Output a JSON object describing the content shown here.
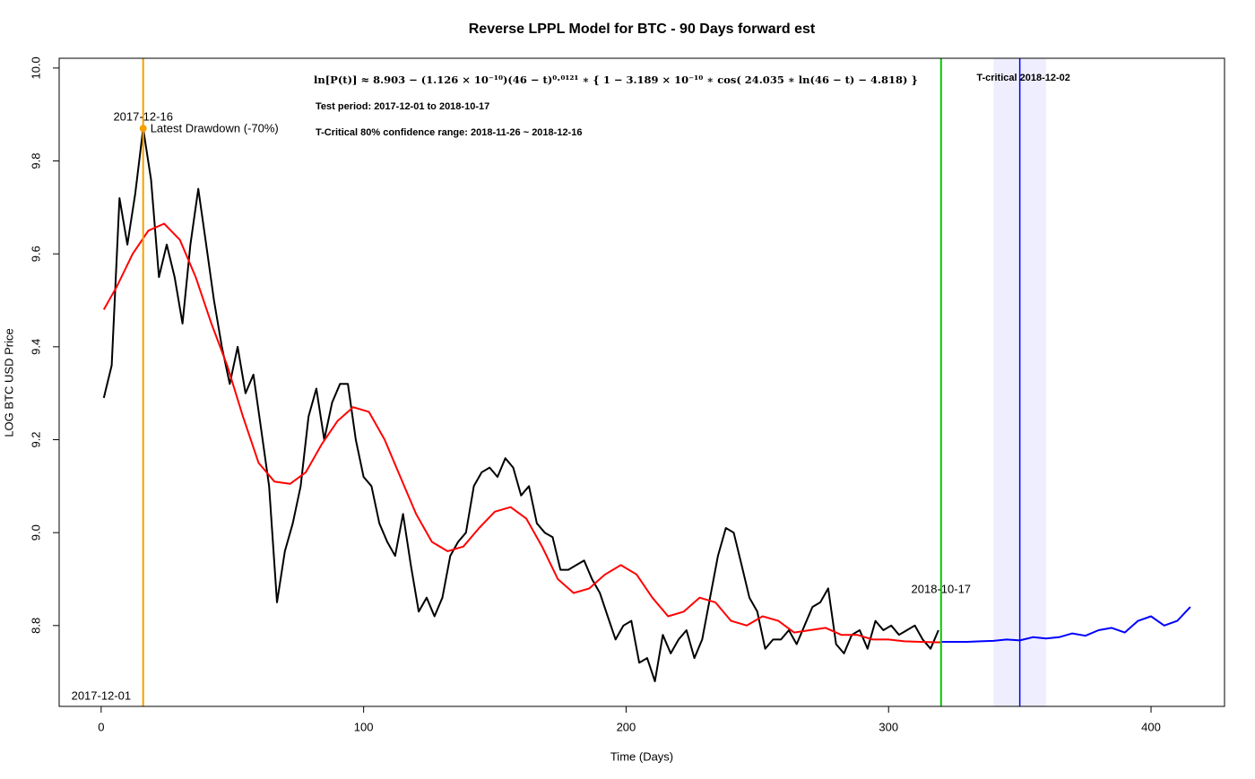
{
  "chart_data": {
    "type": "line",
    "title": "Reverse LPPL Model for BTC - 90 Days forward est",
    "x_label": "Time (Days)",
    "y_label": "LOG BTC USD Price",
    "xlim": [
      -16,
      428
    ],
    "ylim": [
      8.626,
      10.021
    ],
    "xticks": [
      0,
      100,
      200,
      300,
      400
    ],
    "yticks": [
      8.8,
      {
        "value": 9,
        "label": "9.0"
      },
      9.2,
      9.4,
      9.6,
      9.8,
      {
        "value": 10,
        "label": "10.0"
      }
    ],
    "formula": "ln[P(t)] ≈  8.903 − (1.126 × 10⁻¹⁰)(46 − t)⁰·⁰¹²¹ ∗ { 1 − 3.189 × 10⁻¹⁰ ∗ cos( 24.035 ∗ ln(46 − t) − 4.818) }",
    "test_period": "Test period: 2017-12-01 to 2018-10-17",
    "confidence_range": "T-Critical 80% confidence range: 2018-11-26 ~ 2018-12-16",
    "start_label": "2017-12-01",
    "peak": {
      "x": 16,
      "y": 9.87,
      "date_label": "2017-12-16",
      "label": "Latest Drawdown (-70%)",
      "color": "#f5a000"
    },
    "test_end": {
      "x": 320,
      "label": "2018-10-17",
      "color": "#00cc00"
    },
    "t_critical": {
      "x": 350,
      "label": "T-critical  2018-12-02",
      "color": "#0000ff",
      "range": [
        340,
        360
      ],
      "range_color": "#eeeeff"
    },
    "series": [
      {
        "color": "#000000",
        "x": [
          1,
          4,
          7,
          10,
          13,
          16,
          19,
          22,
          25,
          28,
          31,
          34,
          37,
          40,
          43,
          46,
          49,
          52,
          55,
          58,
          61,
          64,
          67,
          70,
          73,
          76,
          79,
          82,
          85,
          88,
          91,
          94,
          97,
          100,
          103,
          106,
          109,
          112,
          115,
          118,
          121,
          124,
          127,
          130,
          133,
          136,
          139,
          142,
          145,
          148,
          151,
          154,
          157,
          160,
          163,
          166,
          169,
          172,
          175,
          178,
          181,
          184,
          187,
          190,
          193,
          196,
          199,
          202,
          205,
          208,
          211,
          214,
          217,
          220,
          223,
          226,
          229,
          232,
          235,
          238,
          241,
          244,
          247,
          250,
          253,
          256,
          259,
          262,
          265,
          268,
          271,
          274,
          277,
          280,
          283,
          286,
          289,
          292,
          295,
          298,
          301,
          304,
          307,
          310,
          313,
          316,
          319
        ],
        "values": [
          9.29,
          9.36,
          9.72,
          9.62,
          9.73,
          9.87,
          9.76,
          9.55,
          9.62,
          9.55,
          9.45,
          9.62,
          9.74,
          9.62,
          9.5,
          9.4,
          9.32,
          9.4,
          9.3,
          9.34,
          9.22,
          9.1,
          8.85,
          8.96,
          9.02,
          9.1,
          9.25,
          9.31,
          9.2,
          9.28,
          9.32,
          9.32,
          9.2,
          9.12,
          9.1,
          9.02,
          8.98,
          8.95,
          9.04,
          8.93,
          8.83,
          8.86,
          8.82,
          8.86,
          8.95,
          8.98,
          9.0,
          9.1,
          9.13,
          9.14,
          9.12,
          9.16,
          9.14,
          9.08,
          9.1,
          9.02,
          9.0,
          8.99,
          8.92,
          8.92,
          8.93,
          8.94,
          8.9,
          8.87,
          8.82,
          8.77,
          8.8,
          8.81,
          8.72,
          8.73,
          8.68,
          8.78,
          8.74,
          8.77,
          8.79,
          8.73,
          8.77,
          8.86,
          8.95,
          9.01,
          9.0,
          8.93,
          8.86,
          8.83,
          8.75,
          8.77,
          8.77,
          8.79,
          8.76,
          8.8,
          8.84,
          8.85,
          8.88,
          8.76,
          8.74,
          8.78,
          8.79,
          8.75,
          8.81,
          8.79,
          8.8,
          8.78,
          8.79,
          8.8,
          8.77,
          8.75,
          8.79
        ]
      },
      {
        "color": "#ff0000",
        "x": [
          1,
          6,
          12,
          18,
          24,
          30,
          36,
          42,
          48,
          54,
          60,
          66,
          72,
          78,
          84,
          90,
          96,
          102,
          108,
          114,
          120,
          126,
          132,
          138,
          144,
          150,
          156,
          162,
          168,
          174,
          180,
          186,
          192,
          198,
          204,
          210,
          216,
          222,
          228,
          234,
          240,
          246,
          252,
          258,
          264,
          270,
          276,
          282,
          288,
          294,
          300,
          306,
          312,
          318,
          320
        ],
        "values": [
          9.48,
          9.53,
          9.6,
          9.65,
          9.665,
          9.63,
          9.55,
          9.45,
          9.36,
          9.25,
          9.15,
          9.11,
          9.105,
          9.13,
          9.19,
          9.24,
          9.27,
          9.26,
          9.2,
          9.12,
          9.04,
          8.98,
          8.96,
          8.97,
          9.01,
          9.045,
          9.055,
          9.03,
          8.97,
          8.9,
          8.87,
          8.88,
          8.91,
          8.93,
          8.91,
          8.86,
          8.82,
          8.83,
          8.86,
          8.85,
          8.81,
          8.8,
          8.82,
          8.81,
          8.785,
          8.79,
          8.795,
          8.78,
          8.78,
          8.77,
          8.77,
          8.766,
          8.765,
          8.764,
          8.764
        ]
      },
      {
        "color": "#0000ff",
        "x": [
          320,
          325,
          330,
          335,
          340,
          345,
          350,
          355,
          360,
          365,
          370,
          375,
          380,
          385,
          390,
          395,
          400,
          405,
          410,
          415
        ],
        "values": [
          8.765,
          8.765,
          8.765,
          8.766,
          8.767,
          8.77,
          8.768,
          8.775,
          8.772,
          8.775,
          8.783,
          8.778,
          8.79,
          8.795,
          8.785,
          8.81,
          8.82,
          8.8,
          8.81,
          8.84
        ]
      }
    ]
  }
}
